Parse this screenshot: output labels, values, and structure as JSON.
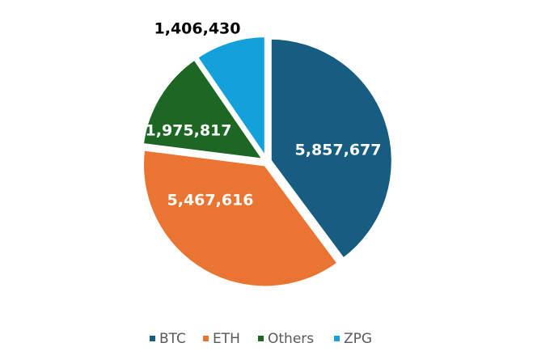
{
  "chart_data": {
    "type": "pie",
    "categories": [
      "BTC",
      "ETH",
      "Others",
      "ZPG"
    ],
    "values": [
      5857677,
      5467616,
      1975817,
      1406430
    ],
    "value_labels": [
      "5,857,677",
      "5,467,616",
      "1,975,817",
      "1,406,430"
    ],
    "colors": [
      "#175d82",
      "#ea7431",
      "#1b6723",
      "#14a0db"
    ],
    "label_colors": [
      "#ffffff",
      "#ffffff",
      "#ffffff",
      "#000000"
    ],
    "start_angle_deg": 0,
    "direction": "clockwise",
    "legend_position": "bottom",
    "title": ""
  }
}
